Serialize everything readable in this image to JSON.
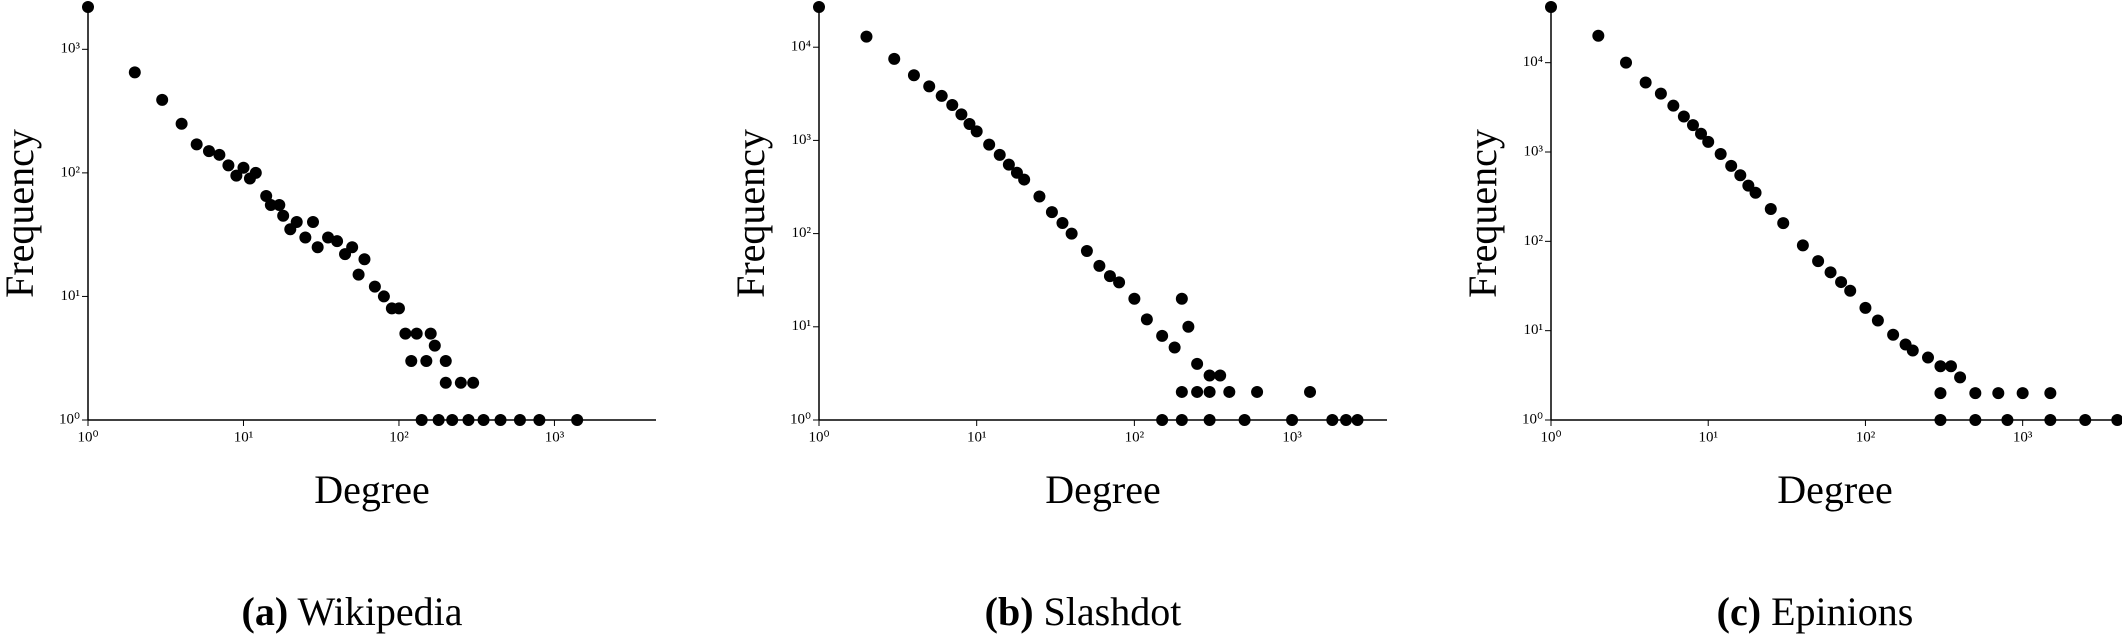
{
  "chart_data": [
    {
      "type": "scatter",
      "caption_label": "(a)",
      "caption": "Wikipedia",
      "xlabel": "Degree",
      "ylabel": "Frequency",
      "log_x": true,
      "log_y": true,
      "color": "#000000",
      "xlim": [
        1,
        4500
      ],
      "ylim": [
        1,
        2200
      ],
      "xticks": [
        {
          "value": 1,
          "label": "10⁰"
        },
        {
          "value": 10,
          "label": "10¹"
        },
        {
          "value": 100,
          "label": "10²"
        },
        {
          "value": 1000,
          "label": "10³"
        }
      ],
      "yticks": [
        {
          "value": 1,
          "label": "10⁰"
        },
        {
          "value": 10,
          "label": "10¹"
        },
        {
          "value": 100,
          "label": "10²"
        },
        {
          "value": 1000,
          "label": "10³"
        }
      ],
      "x": [
        1,
        2,
        3,
        4,
        5,
        6,
        7,
        8,
        9,
        10,
        11,
        12,
        14,
        15,
        17,
        18,
        20,
        22,
        25,
        28,
        30,
        35,
        40,
        45,
        50,
        55,
        60,
        70,
        80,
        90,
        100,
        110,
        130,
        150,
        170,
        200,
        250,
        300,
        140,
        180,
        220,
        280,
        350,
        450,
        600,
        800,
        1400,
        120,
        160,
        200
      ],
      "y": [
        2200,
        650,
        390,
        250,
        170,
        150,
        140,
        115,
        95,
        110,
        90,
        100,
        65,
        55,
        55,
        45,
        35,
        40,
        30,
        40,
        25,
        30,
        28,
        22,
        25,
        15,
        20,
        12,
        10,
        8,
        8,
        5,
        5,
        3,
        4,
        2,
        2,
        2,
        1,
        1,
        1,
        1,
        1,
        1,
        1,
        1,
        1,
        3,
        5,
        3
      ]
    },
    {
      "type": "scatter",
      "caption_label": "(b)",
      "caption": "Slashdot",
      "xlabel": "Degree",
      "ylabel": "Frequency",
      "log_x": true,
      "log_y": true,
      "color": "#000000",
      "xlim": [
        1,
        4000
      ],
      "ylim": [
        1,
        27000
      ],
      "xticks": [
        {
          "value": 1,
          "label": "10⁰"
        },
        {
          "value": 10,
          "label": "10¹"
        },
        {
          "value": 100,
          "label": "10²"
        },
        {
          "value": 1000,
          "label": "10³"
        }
      ],
      "yticks": [
        {
          "value": 1,
          "label": "10⁰"
        },
        {
          "value": 10,
          "label": "10¹"
        },
        {
          "value": 100,
          "label": "10²"
        },
        {
          "value": 1000,
          "label": "10³"
        },
        {
          "value": 10000,
          "label": "10⁴"
        }
      ],
      "x": [
        1,
        2,
        3,
        4,
        5,
        6,
        7,
        8,
        9,
        10,
        12,
        14,
        16,
        18,
        20,
        25,
        30,
        35,
        40,
        50,
        60,
        70,
        80,
        100,
        120,
        150,
        180,
        200,
        220,
        250,
        300,
        350,
        200,
        250,
        300,
        400,
        600,
        1300,
        150,
        200,
        300,
        500,
        1000,
        1800,
        2200,
        2600
      ],
      "y": [
        27000,
        13000,
        7500,
        5000,
        3800,
        3000,
        2400,
        1900,
        1500,
        1250,
        900,
        700,
        550,
        450,
        380,
        250,
        170,
        130,
        100,
        65,
        45,
        35,
        30,
        20,
        12,
        8,
        6,
        20,
        10,
        4,
        3,
        3,
        2,
        2,
        2,
        2,
        2,
        2,
        1,
        1,
        1,
        1,
        1,
        1,
        1,
        1
      ]
    },
    {
      "type": "scatter",
      "caption_label": "(c)",
      "caption": "Epinions",
      "xlabel": "Degree",
      "ylabel": "Frequency",
      "log_x": true,
      "log_y": true,
      "color": "#000000",
      "xlim": [
        1,
        4100
      ],
      "ylim": [
        1,
        42000
      ],
      "xticks": [
        {
          "value": 1,
          "label": "10⁰"
        },
        {
          "value": 10,
          "label": "10¹"
        },
        {
          "value": 100,
          "label": "10²"
        },
        {
          "value": 1000,
          "label": "10³"
        }
      ],
      "yticks": [
        {
          "value": 1,
          "label": "10⁰"
        },
        {
          "value": 10,
          "label": "10¹"
        },
        {
          "value": 100,
          "label": "10²"
        },
        {
          "value": 1000,
          "label": "10³"
        },
        {
          "value": 10000,
          "label": "10⁴"
        }
      ],
      "x": [
        1,
        2,
        3,
        4,
        5,
        6,
        7,
        8,
        9,
        10,
        12,
        14,
        16,
        18,
        20,
        25,
        30,
        40,
        50,
        60,
        70,
        80,
        100,
        120,
        150,
        180,
        200,
        250,
        300,
        350,
        400,
        300,
        500,
        700,
        1000,
        1500,
        300,
        500,
        800,
        1500,
        2500,
        4000
      ],
      "y": [
        42000,
        20000,
        10000,
        6000,
        4500,
        3300,
        2500,
        2000,
        1600,
        1300,
        950,
        700,
        550,
        420,
        350,
        230,
        160,
        90,
        60,
        45,
        35,
        28,
        18,
        13,
        9,
        7,
        6,
        5,
        4,
        4,
        3,
        2,
        2,
        2,
        2,
        2,
        1,
        1,
        1,
        1,
        1,
        1
      ]
    }
  ]
}
